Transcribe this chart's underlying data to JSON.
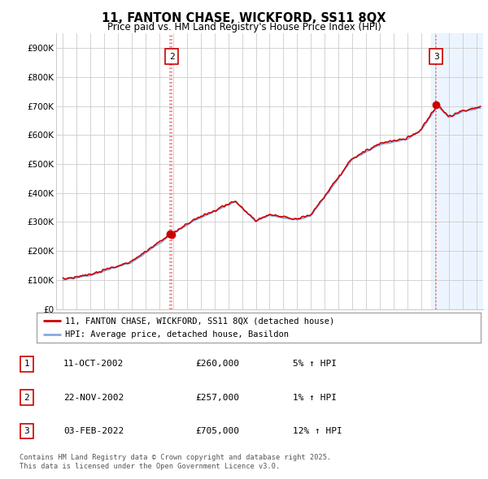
{
  "title": "11, FANTON CHASE, WICKFORD, SS11 8QX",
  "subtitle": "Price paid vs. HM Land Registry's House Price Index (HPI)",
  "ylabel_ticks": [
    "£0",
    "£100K",
    "£200K",
    "£300K",
    "£400K",
    "£500K",
    "£600K",
    "£700K",
    "£800K",
    "£900K"
  ],
  "ylim": [
    0,
    950000
  ],
  "xlim_start": 1994.5,
  "xlim_end": 2025.5,
  "sale_dates": [
    2002.77,
    2002.9,
    2022.085
  ],
  "sale_prices": [
    260000,
    257000,
    705000
  ],
  "sale_labels": [
    "1",
    "2",
    "3"
  ],
  "sale_label_show": [
    false,
    true,
    true
  ],
  "dotted_line_color": "#e87070",
  "sale_marker_color": "#cc0000",
  "hpi_line_color": "#88aadd",
  "price_line_color": "#cc0000",
  "shade_color": "#ddeeff",
  "shade_alpha": 0.55,
  "legend_label_price": "11, FANTON CHASE, WICKFORD, SS11 8QX (detached house)",
  "legend_label_hpi": "HPI: Average price, detached house, Basildon",
  "table_rows": [
    [
      "1",
      "11-OCT-2002",
      "£260,000",
      "5% ↑ HPI"
    ],
    [
      "2",
      "22-NOV-2002",
      "£257,000",
      "1% ↑ HPI"
    ],
    [
      "3",
      "03-FEB-2022",
      "£705,000",
      "12% ↑ HPI"
    ]
  ],
  "footnote": "Contains HM Land Registry data © Crown copyright and database right 2025.\nThis data is licensed under the Open Government Licence v3.0.",
  "background_color": "#ffffff",
  "grid_color": "#cccccc",
  "label_box_color": "#cc0000"
}
